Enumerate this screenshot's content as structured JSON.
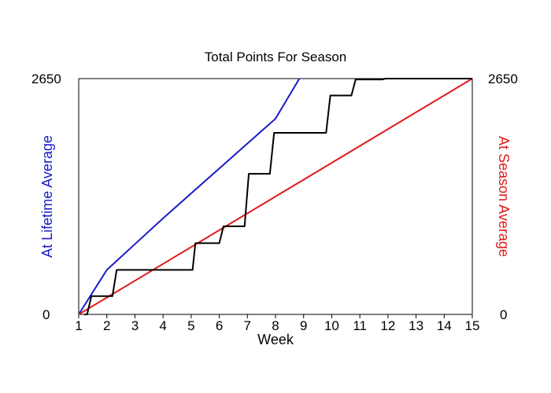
{
  "chart_data": {
    "type": "line",
    "title": "Total Points For Season",
    "xlabel": "Week",
    "y_left_label": "At Lifetime Average",
    "y_right_label": "At Season Average",
    "xlim": [
      1,
      15
    ],
    "ylim": [
      0,
      2650
    ],
    "x_ticks": [
      1,
      2,
      3,
      4,
      5,
      6,
      7,
      8,
      9,
      10,
      11,
      12,
      13,
      14,
      15
    ],
    "y_tick_labels": {
      "left": [
        "0",
        "2650"
      ],
      "right": [
        "0",
        "2650"
      ]
    },
    "grid": false,
    "colors": {
      "lifetime": "#1a1acc",
      "season": "#e01a1a",
      "actual": "#000000"
    },
    "series": [
      {
        "key": "lifetime",
        "x": [
          1,
          2,
          3,
          4,
          5,
          6,
          7,
          8,
          8.85
        ],
        "y": [
          0,
          500,
          790,
          1080,
          1360,
          1640,
          1920,
          2200,
          2650
        ]
      },
      {
        "key": "season",
        "x": [
          1,
          15
        ],
        "y": [
          0,
          2650
        ]
      },
      {
        "key": "actual",
        "steps": [
          [
            1.2,
            0
          ],
          [
            1.3,
            0
          ],
          [
            1.45,
            205
          ],
          [
            2.2,
            205
          ],
          [
            2.35,
            500
          ],
          [
            5.05,
            500
          ],
          [
            5.15,
            800
          ],
          [
            6.0,
            800
          ],
          [
            6.15,
            990
          ],
          [
            6.9,
            990
          ],
          [
            7.05,
            1580
          ],
          [
            7.8,
            1580
          ],
          [
            7.95,
            2040
          ],
          [
            9.8,
            2040
          ],
          [
            9.95,
            2460
          ],
          [
            10.7,
            2460
          ],
          [
            10.85,
            2640
          ],
          [
            11.8,
            2640
          ],
          [
            11.9,
            2650
          ],
          [
            15,
            2650
          ]
        ]
      }
    ]
  }
}
